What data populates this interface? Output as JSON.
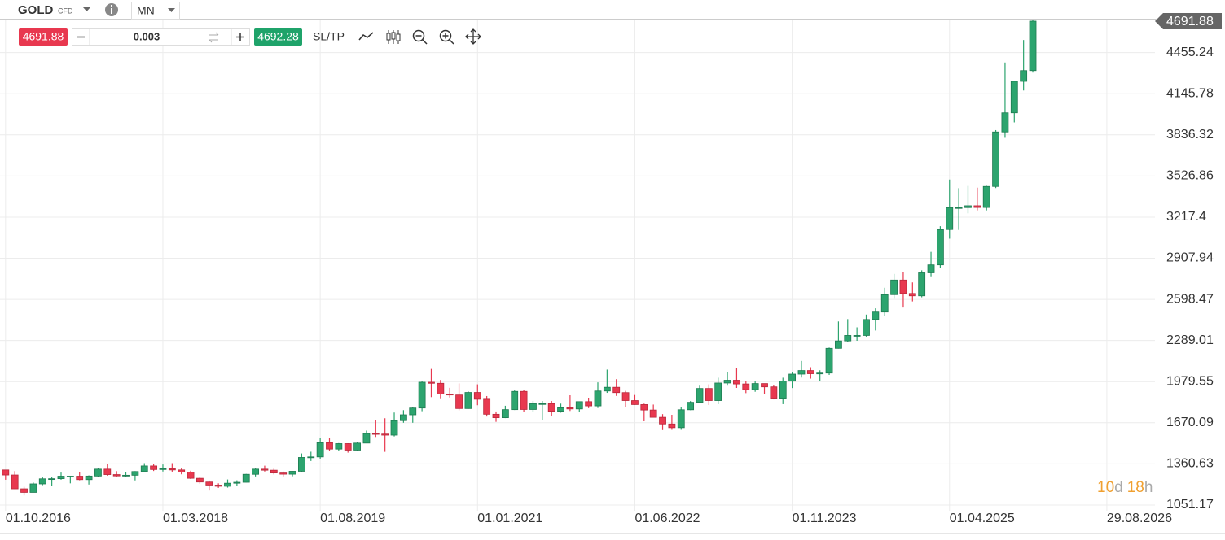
{
  "toolbar": {
    "symbol": "GOLD",
    "symbol_type": "CFD",
    "timeframe": "MN",
    "bid": "4691.88",
    "volume": "0.003",
    "ask": "4692.28",
    "sltp": "SL/TP"
  },
  "countdown": {
    "days": "10",
    "days_unit": "d",
    "hours": "18",
    "hours_unit": "h"
  },
  "chart_data": {
    "type": "candlestick",
    "up_color": "#2ca46e",
    "down_color": "#e8384f",
    "grid": true,
    "last_price": 4691.88,
    "xlim": [
      -0.6,
      124.2
    ],
    "xticks": [
      {
        "value": 0,
        "label": "01.10.2016"
      },
      {
        "value": 17,
        "label": "01.03.2018"
      },
      {
        "value": 34,
        "label": "01.08.2019"
      },
      {
        "value": 51,
        "label": "01.01.2021"
      },
      {
        "value": 68,
        "label": "01.06.2022"
      },
      {
        "value": 85,
        "label": "01.11.2023"
      },
      {
        "value": 102,
        "label": "01.04.2025"
      },
      {
        "value": 119,
        "label": "29.08.2026"
      }
    ],
    "ylim": [
      1008,
      4704
    ],
    "yticks": [
      1051.17,
      1360.63,
      1670.09,
      1979.55,
      2289.01,
      2598.47,
      2907.94,
      3217.4,
      3526.86,
      3836.32,
      4145.78,
      4455.24
    ],
    "open": [
      1315,
      1277,
      1173,
      1146,
      1210,
      1248,
      1249,
      1268,
      1268,
      1242,
      1269,
      1321,
      1280,
      1270,
      1275,
      1303,
      1345,
      1318,
      1325,
      1315,
      1298,
      1252,
      1224,
      1201,
      1192,
      1215,
      1222,
      1282,
      1321,
      1313,
      1292,
      1283,
      1305,
      1409,
      1413,
      1520,
      1472,
      1513,
      1464,
      1517,
      1589,
      1585,
      1577,
      1686,
      1730,
      1781,
      1975,
      1967,
      1886,
      1879,
      1777,
      1898,
      1847,
      1734,
      1708,
      1769,
      1906,
      1770,
      1814,
      1814,
      1757,
      1783,
      1774,
      1829,
      1797,
      1909,
      1937,
      1897,
      1837,
      1807,
      1766,
      1711,
      1661,
      1633,
      1768,
      1824,
      1928,
      1837,
      1969,
      1990,
      1962,
      1919,
      1965,
      1940,
      1849,
      1983,
      2036,
      2063,
      2039,
      2044,
      2230,
      2286,
      2327,
      2327,
      2447,
      2503,
      2634,
      2744,
      2643,
      2625,
      2798,
      2858,
      3124,
      3289,
      3289,
      3303,
      3290,
      3448,
      3858,
      4002,
      4239,
      4320
    ],
    "high": [
      1317,
      1306,
      1188,
      1220,
      1264,
      1262,
      1295,
      1270,
      1296,
      1274,
      1331,
      1357,
      1306,
      1299,
      1306,
      1366,
      1361,
      1356,
      1366,
      1326,
      1309,
      1265,
      1235,
      1214,
      1243,
      1237,
      1285,
      1326,
      1347,
      1324,
      1303,
      1306,
      1439,
      1452,
      1555,
      1557,
      1517,
      1516,
      1525,
      1611,
      1689,
      1704,
      1747,
      1765,
      1789,
      1984,
      2075,
      1992,
      1933,
      1966,
      1906,
      1959,
      1871,
      1755,
      1798,
      1913,
      1916,
      1834,
      1834,
      1834,
      1814,
      1877,
      1831,
      1853,
      1974,
      2070,
      1998,
      1910,
      1879,
      1814,
      1807,
      1735,
      1730,
      1786,
      1833,
      1949,
      1959,
      2009,
      2049,
      2079,
      1983,
      1987,
      1949,
      1953,
      2009,
      2052,
      2135,
      2088,
      2065,
      2236,
      2432,
      2450,
      2388,
      2484,
      2531,
      2686,
      2790,
      2801,
      2726,
      2817,
      2956,
      3149,
      3500,
      3435,
      3452,
      3439,
      3453,
      3872,
      4381,
      4245,
      4550,
      4700
    ],
    "low": [
      1241,
      1171,
      1123,
      1146,
      1200,
      1195,
      1241,
      1214,
      1237,
      1205,
      1265,
      1271,
      1260,
      1264,
      1236,
      1302,
      1307,
      1303,
      1302,
      1282,
      1247,
      1211,
      1160,
      1180,
      1182,
      1196,
      1221,
      1266,
      1303,
      1281,
      1266,
      1267,
      1301,
      1382,
      1400,
      1459,
      1458,
      1445,
      1459,
      1517,
      1563,
      1451,
      1567,
      1670,
      1670,
      1757,
      1863,
      1848,
      1860,
      1764,
      1775,
      1802,
      1717,
      1677,
      1705,
      1766,
      1751,
      1750,
      1688,
      1721,
      1746,
      1759,
      1753,
      1780,
      1781,
      1895,
      1872,
      1787,
      1805,
      1681,
      1709,
      1615,
      1617,
      1617,
      1765,
      1823,
      1804,
      1810,
      1949,
      1932,
      1893,
      1903,
      1885,
      1846,
      1810,
      1931,
      2010,
      2002,
      1984,
      2030,
      2228,
      2277,
      2287,
      2318,
      2364,
      2472,
      2603,
      2537,
      2583,
      2614,
      2772,
      2832,
      3055,
      3121,
      3246,
      3268,
      3268,
      3436,
      3814,
      3930,
      4170,
      4305
    ],
    "close": [
      1277,
      1173,
      1146,
      1210,
      1248,
      1249,
      1268,
      1268,
      1242,
      1269,
      1321,
      1280,
      1270,
      1275,
      1303,
      1345,
      1318,
      1325,
      1315,
      1298,
      1252,
      1224,
      1201,
      1192,
      1215,
      1222,
      1282,
      1321,
      1313,
      1292,
      1283,
      1305,
      1409,
      1413,
      1520,
      1472,
      1513,
      1464,
      1517,
      1589,
      1585,
      1577,
      1686,
      1730,
      1781,
      1975,
      1967,
      1886,
      1879,
      1777,
      1898,
      1847,
      1734,
      1708,
      1769,
      1906,
      1770,
      1814,
      1814,
      1757,
      1783,
      1774,
      1829,
      1797,
      1909,
      1937,
      1897,
      1837,
      1807,
      1766,
      1711,
      1661,
      1633,
      1768,
      1824,
      1928,
      1837,
      1969,
      1990,
      1962,
      1919,
      1965,
      1940,
      1849,
      1983,
      2036,
      2063,
      2039,
      2044,
      2230,
      2286,
      2327,
      2327,
      2447,
      2503,
      2634,
      2744,
      2643,
      2625,
      2798,
      2858,
      3124,
      3289,
      3289,
      3303,
      3290,
      3448,
      3858,
      4002,
      4239,
      4320,
      4691.88
    ]
  }
}
